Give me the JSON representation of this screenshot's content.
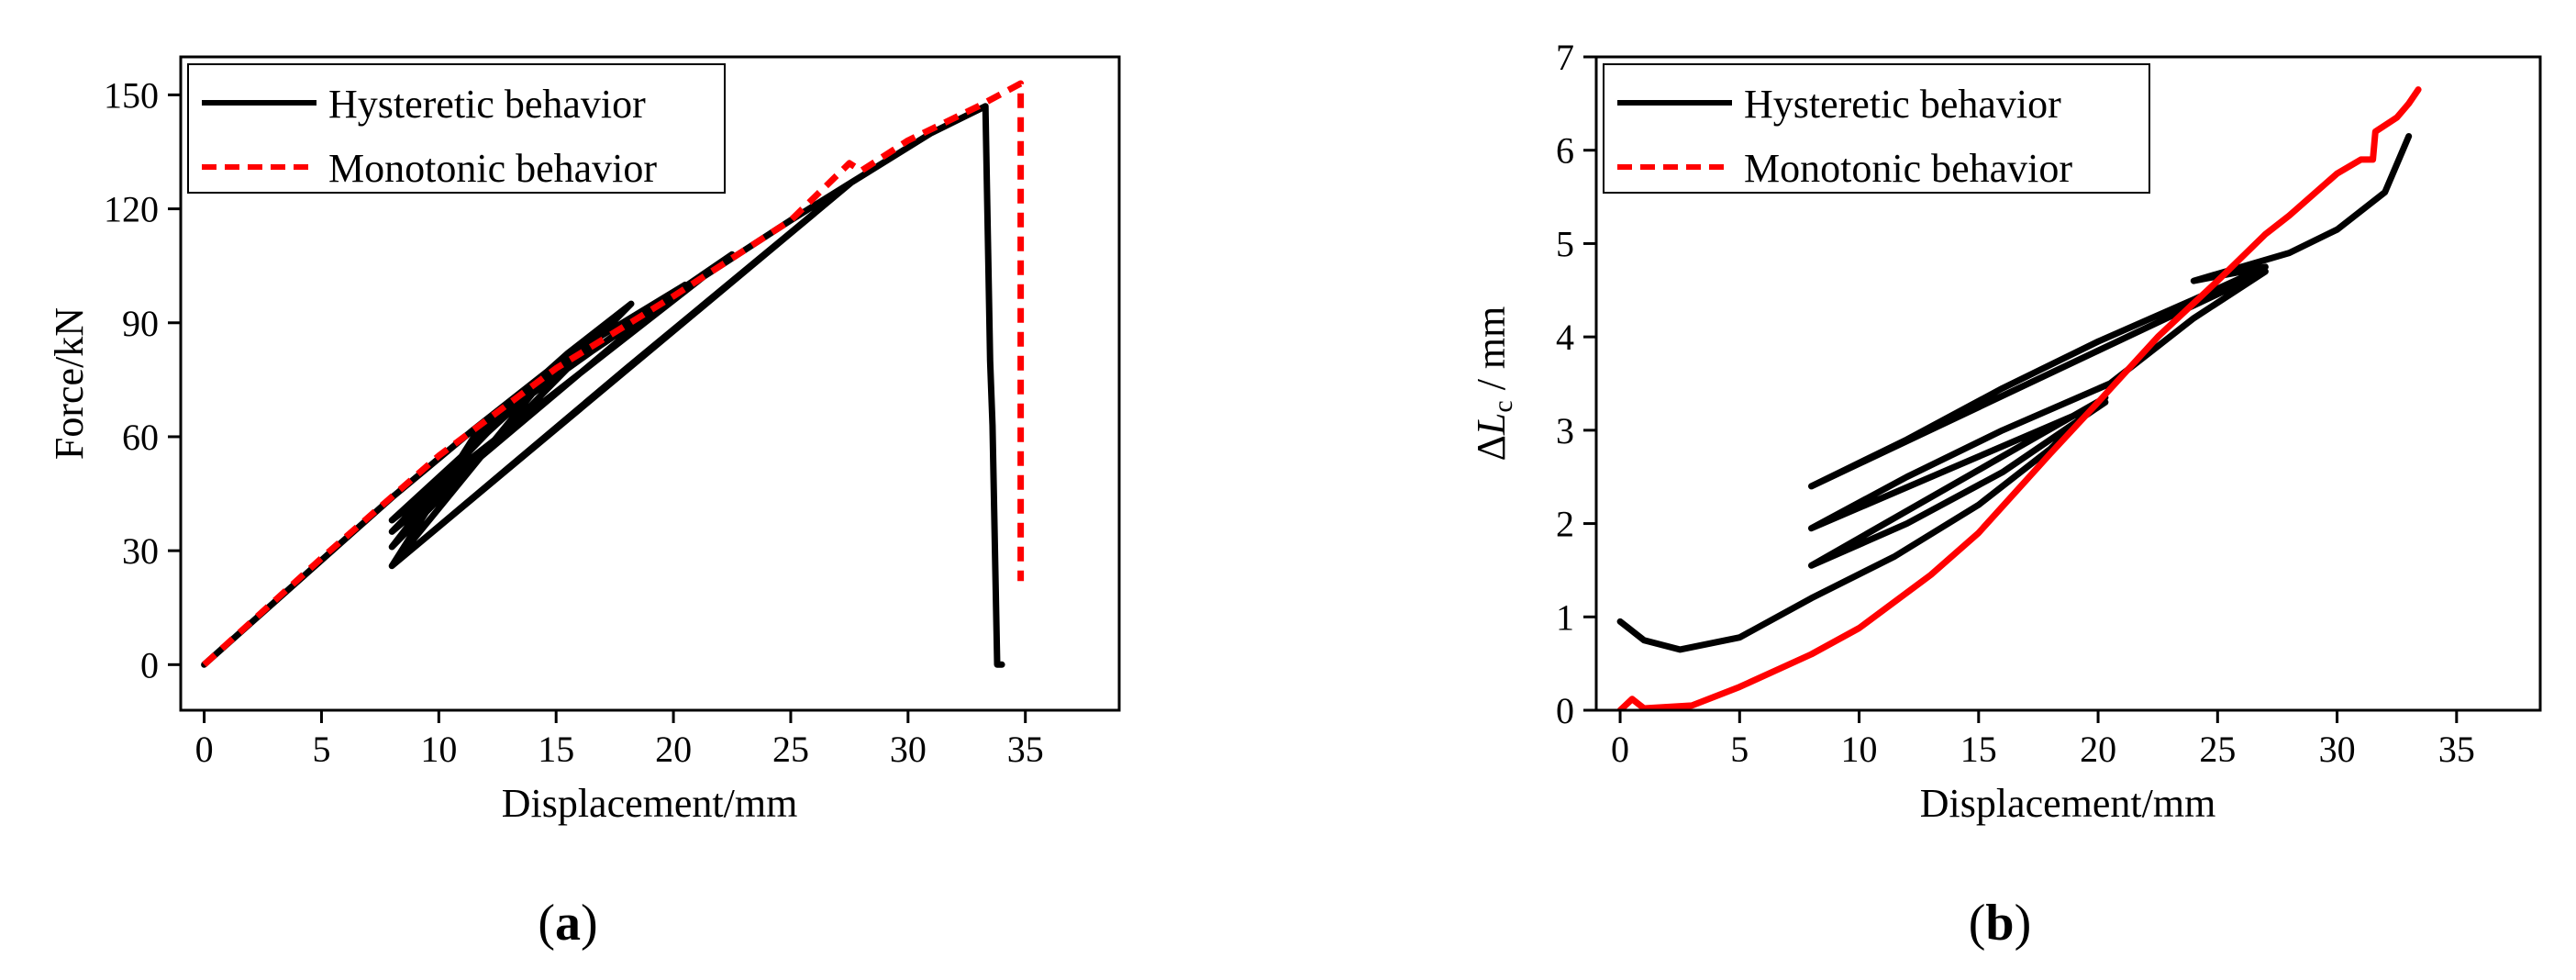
{
  "chart_data": [
    {
      "type": "line",
      "panel_label": {
        "open": "(",
        "letter": "a",
        "close": ")"
      },
      "xlabel": "Displacement/mm",
      "ylabel": "Force/kN",
      "xlim": [
        -1,
        39
      ],
      "ylim": [
        -12,
        160
      ],
      "xticks": [
        0,
        5,
        10,
        15,
        20,
        25,
        30,
        35
      ],
      "yticks": [
        0,
        30,
        60,
        90,
        120,
        150
      ],
      "legend_position": "top-left",
      "series": [
        {
          "name": "Hysteretic behavior",
          "color": "#000000",
          "style": "solid",
          "points": [
            [
              0,
              0
            ],
            [
              8,
              44
            ],
            [
              11.5,
              62
            ],
            [
              15,
              79
            ],
            [
              8,
              26
            ],
            [
              11.5,
              60
            ],
            [
              15.5,
              82
            ],
            [
              18.2,
              95
            ],
            [
              8,
              31
            ],
            [
              12,
              63
            ],
            [
              16.5,
              85
            ],
            [
              20.5,
              100
            ],
            [
              8,
              35
            ],
            [
              13,
              67
            ],
            [
              18,
              89
            ],
            [
              22.5,
              108
            ],
            [
              8,
              38
            ],
            [
              14,
              72
            ],
            [
              20,
              97
            ],
            [
              25,
              117
            ],
            [
              27.6,
              127
            ],
            [
              8,
              26
            ],
            [
              18,
              78
            ],
            [
              27.6,
              127
            ],
            [
              31,
              140
            ],
            [
              33.3,
              147
            ],
            [
              33.5,
              80
            ],
            [
              33.6,
              63
            ],
            [
              33.8,
              0
            ],
            [
              34,
              0
            ]
          ]
        },
        {
          "name": "Monotonic behavior",
          "color": "#ff0000",
          "style": "dashed",
          "points": [
            [
              0,
              0
            ],
            [
              5,
              28
            ],
            [
              10,
              55
            ],
            [
              15,
              78
            ],
            [
              20,
              97
            ],
            [
              25,
              117
            ],
            [
              27.5,
              132
            ],
            [
              28,
              130
            ],
            [
              30,
              138
            ],
            [
              33,
              147
            ],
            [
              34.8,
              153
            ],
            [
              34.8,
              22
            ]
          ]
        }
      ]
    },
    {
      "type": "line",
      "panel_label": {
        "open": "(",
        "letter": "b",
        "close": ")"
      },
      "xlabel": "Displacement/mm",
      "ylabel": {
        "prefix": "Δ",
        "var": "L",
        "sub": "c",
        "unit": " / mm"
      },
      "xlim": [
        -1,
        38.5
      ],
      "ylim": [
        0,
        7
      ],
      "xticks": [
        0,
        5,
        10,
        15,
        20,
        25,
        30,
        35
      ],
      "yticks": [
        0,
        1,
        2,
        3,
        4,
        5,
        6,
        7
      ],
      "legend_position": "top-left",
      "series": [
        {
          "name": "Hysteretic behavior",
          "color": "#000000",
          "style": "solid",
          "points": [
            [
              0,
              0.95
            ],
            [
              1,
              0.75
            ],
            [
              2.5,
              0.65
            ],
            [
              5,
              0.78
            ],
            [
              8,
              1.2
            ],
            [
              11.5,
              1.65
            ],
            [
              15,
              2.2
            ],
            [
              18,
              2.8
            ],
            [
              20,
              3.3
            ],
            [
              20.3,
              3.35
            ],
            [
              8,
              1.55
            ],
            [
              12,
              2.0
            ],
            [
              16,
              2.55
            ],
            [
              20.3,
              3.3
            ],
            [
              8,
              1.95
            ],
            [
              12,
              2.5
            ],
            [
              16,
              3.0
            ],
            [
              20.5,
              3.5
            ],
            [
              24,
              4.2
            ],
            [
              27,
              4.7
            ],
            [
              8,
              2.4
            ],
            [
              12,
              2.9
            ],
            [
              16,
              3.45
            ],
            [
              20,
              3.95
            ],
            [
              24,
              4.4
            ],
            [
              27,
              4.75
            ],
            [
              24,
              4.6
            ],
            [
              28,
              4.9
            ],
            [
              30,
              5.15
            ],
            [
              32,
              5.55
            ],
            [
              33,
              6.15
            ]
          ]
        },
        {
          "name": "Monotonic behavior",
          "color": "#ff0000",
          "style": "solid",
          "points": [
            [
              0,
              0
            ],
            [
              0.5,
              0.12
            ],
            [
              1,
              0.02
            ],
            [
              3,
              0.05
            ],
            [
              5,
              0.25
            ],
            [
              8,
              0.6
            ],
            [
              10,
              0.88
            ],
            [
              13,
              1.45
            ],
            [
              15,
              1.9
            ],
            [
              18,
              2.75
            ],
            [
              20,
              3.3
            ],
            [
              22.5,
              4.0
            ],
            [
              25,
              4.6
            ],
            [
              27,
              5.1
            ],
            [
              28,
              5.3
            ],
            [
              30,
              5.75
            ],
            [
              31,
              5.9
            ],
            [
              31.5,
              5.9
            ],
            [
              31.6,
              6.2
            ],
            [
              32.5,
              6.35
            ],
            [
              33,
              6.5
            ],
            [
              33.4,
              6.65
            ]
          ]
        }
      ]
    }
  ]
}
